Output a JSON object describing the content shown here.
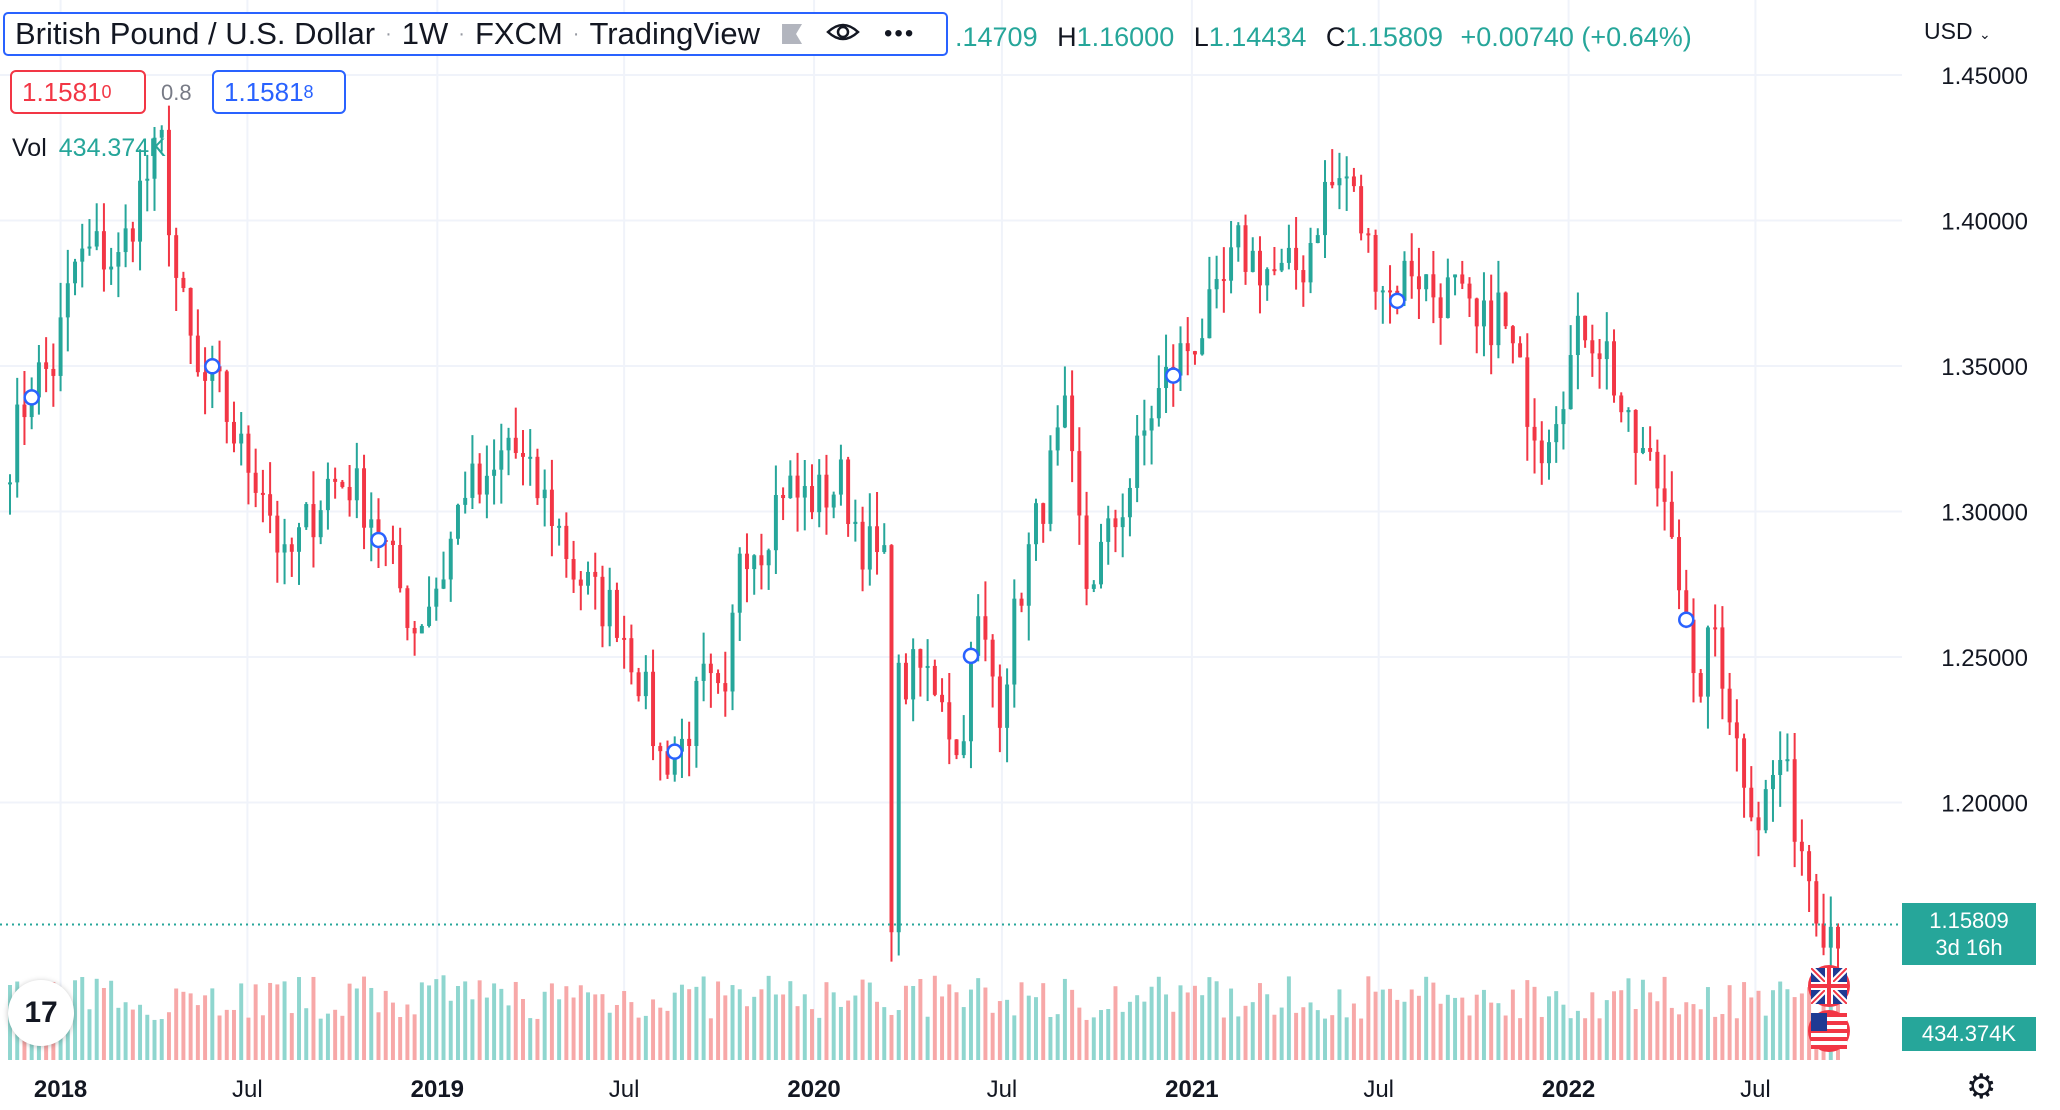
{
  "header": {
    "title": "British Pound / U.S. Dollar",
    "interval": "1W",
    "exchange": "FXCM",
    "source": "TradingView"
  },
  "ohlc": {
    "open": ".14709",
    "high_label": "H",
    "high": "1.16000",
    "low_label": "L",
    "low": "1.14434",
    "close_label": "C",
    "close": "1.15809",
    "change": "+0.00740 (+0.64%)"
  },
  "quote": {
    "sell": "1.1581",
    "sell_sup": "0",
    "spread": "0.8",
    "buy": "1.1581",
    "buy_sup": "8"
  },
  "volume_legend": {
    "label": "Vol",
    "value": "434.374K"
  },
  "currency": "USD",
  "price_scale": [
    "1.45000",
    "1.40000",
    "1.35000",
    "1.30000",
    "1.25000",
    "1.20000"
  ],
  "time_scale": [
    "2018",
    "Jul",
    "2019",
    "Jul",
    "2020",
    "Jul",
    "2021",
    "Jul",
    "2022",
    "Jul"
  ],
  "last_price": {
    "value": "1.15809",
    "countdown": "3d 16h"
  },
  "last_volume": "434.374K",
  "colors": {
    "up": "#26a69a",
    "down": "#f23645",
    "up_vol": "#8fd6cf",
    "down_vol": "#f7a8a8",
    "grid": "#f0f3fa",
    "accent": "#2962ff"
  },
  "chart_data": {
    "type": "candlestick",
    "symbol": "GBPUSD",
    "interval": "1W",
    "ylim": [
      1.13,
      1.465
    ],
    "x_start": "2017-11-13",
    "x_end": "2022-09-19",
    "close_series": [
      {
        "date": "2017-11-13",
        "value": 1.32
      },
      {
        "date": "2017-12-04",
        "value": 1.345
      },
      {
        "date": "2017-12-25",
        "value": 1.35
      },
      {
        "date": "2018-01-15",
        "value": 1.385
      },
      {
        "date": "2018-02-05",
        "value": 1.39
      },
      {
        "date": "2018-02-26",
        "value": 1.385
      },
      {
        "date": "2018-03-19",
        "value": 1.41
      },
      {
        "date": "2018-04-09",
        "value": 1.425
      },
      {
        "date": "2018-04-23",
        "value": 1.38
      },
      {
        "date": "2018-05-14",
        "value": 1.345
      },
      {
        "date": "2018-06-04",
        "value": 1.34
      },
      {
        "date": "2018-06-25",
        "value": 1.32
      },
      {
        "date": "2018-07-16",
        "value": 1.31
      },
      {
        "date": "2018-08-06",
        "value": 1.28
      },
      {
        "date": "2018-08-27",
        "value": 1.295
      },
      {
        "date": "2018-09-17",
        "value": 1.31
      },
      {
        "date": "2018-10-08",
        "value": 1.31
      },
      {
        "date": "2018-10-29",
        "value": 1.3
      },
      {
        "date": "2018-11-19",
        "value": 1.28
      },
      {
        "date": "2018-12-10",
        "value": 1.26
      },
      {
        "date": "2019-01-07",
        "value": 1.28
      },
      {
        "date": "2019-01-28",
        "value": 1.31
      },
      {
        "date": "2019-02-18",
        "value": 1.305
      },
      {
        "date": "2019-03-11",
        "value": 1.325
      },
      {
        "date": "2019-04-01",
        "value": 1.31
      },
      {
        "date": "2019-04-22",
        "value": 1.3
      },
      {
        "date": "2019-05-13",
        "value": 1.28
      },
      {
        "date": "2019-06-03",
        "value": 1.27
      },
      {
        "date": "2019-06-24",
        "value": 1.265
      },
      {
        "date": "2019-07-15",
        "value": 1.245
      },
      {
        "date": "2019-08-05",
        "value": 1.215
      },
      {
        "date": "2019-08-26",
        "value": 1.22
      },
      {
        "date": "2019-09-16",
        "value": 1.24
      },
      {
        "date": "2019-10-07",
        "value": 1.23
      },
      {
        "date": "2019-10-21",
        "value": 1.29
      },
      {
        "date": "2019-11-11",
        "value": 1.29
      },
      {
        "date": "2019-12-02",
        "value": 1.31
      },
      {
        "date": "2019-12-16",
        "value": 1.305
      },
      {
        "date": "2020-01-06",
        "value": 1.305
      },
      {
        "date": "2020-01-27",
        "value": 1.31
      },
      {
        "date": "2020-02-17",
        "value": 1.29
      },
      {
        "date": "2020-03-09",
        "value": 1.28
      },
      {
        "date": "2020-03-16",
        "value": 1.165
      },
      {
        "date": "2020-03-23",
        "value": 1.24
      },
      {
        "date": "2020-04-13",
        "value": 1.245
      },
      {
        "date": "2020-05-04",
        "value": 1.24
      },
      {
        "date": "2020-05-18",
        "value": 1.215
      },
      {
        "date": "2020-06-08",
        "value": 1.26
      },
      {
        "date": "2020-06-29",
        "value": 1.235
      },
      {
        "date": "2020-07-20",
        "value": 1.275
      },
      {
        "date": "2020-08-10",
        "value": 1.305
      },
      {
        "date": "2020-08-31",
        "value": 1.33
      },
      {
        "date": "2020-09-21",
        "value": 1.275
      },
      {
        "date": "2020-10-12",
        "value": 1.29
      },
      {
        "date": "2020-11-02",
        "value": 1.31
      },
      {
        "date": "2020-11-23",
        "value": 1.335
      },
      {
        "date": "2020-12-14",
        "value": 1.35
      },
      {
        "date": "2021-01-04",
        "value": 1.36
      },
      {
        "date": "2021-01-25",
        "value": 1.37
      },
      {
        "date": "2021-02-15",
        "value": 1.39
      },
      {
        "date": "2021-03-08",
        "value": 1.385
      },
      {
        "date": "2021-03-29",
        "value": 1.38
      },
      {
        "date": "2021-04-19",
        "value": 1.385
      },
      {
        "date": "2021-05-10",
        "value": 1.41
      },
      {
        "date": "2021-05-31",
        "value": 1.415
      },
      {
        "date": "2021-06-21",
        "value": 1.39
      },
      {
        "date": "2021-07-12",
        "value": 1.375
      },
      {
        "date": "2021-08-02",
        "value": 1.385
      },
      {
        "date": "2021-08-23",
        "value": 1.375
      },
      {
        "date": "2021-09-13",
        "value": 1.375
      },
      {
        "date": "2021-10-04",
        "value": 1.36
      },
      {
        "date": "2021-10-25",
        "value": 1.37
      },
      {
        "date": "2021-11-15",
        "value": 1.345
      },
      {
        "date": "2021-12-06",
        "value": 1.325
      },
      {
        "date": "2021-12-27",
        "value": 1.345
      },
      {
        "date": "2022-01-17",
        "value": 1.365
      },
      {
        "date": "2022-02-07",
        "value": 1.355
      },
      {
        "date": "2022-02-28",
        "value": 1.325
      },
      {
        "date": "2022-03-21",
        "value": 1.315
      },
      {
        "date": "2022-04-11",
        "value": 1.3
      },
      {
        "date": "2022-05-02",
        "value": 1.235
      },
      {
        "date": "2022-05-23",
        "value": 1.26
      },
      {
        "date": "2022-06-13",
        "value": 1.22
      },
      {
        "date": "2022-07-04",
        "value": 1.195
      },
      {
        "date": "2022-07-25",
        "value": 1.215
      },
      {
        "date": "2022-08-15",
        "value": 1.185
      },
      {
        "date": "2022-09-05",
        "value": 1.16
      },
      {
        "date": "2022-09-19",
        "value": 1.158
      }
    ],
    "markers_dates": [
      "2017-12-04",
      "2018-05-28",
      "2018-11-05",
      "2019-08-19",
      "2020-06-01",
      "2020-12-14",
      "2021-07-19",
      "2022-04-25"
    ],
    "volume_last": "434.374K"
  }
}
